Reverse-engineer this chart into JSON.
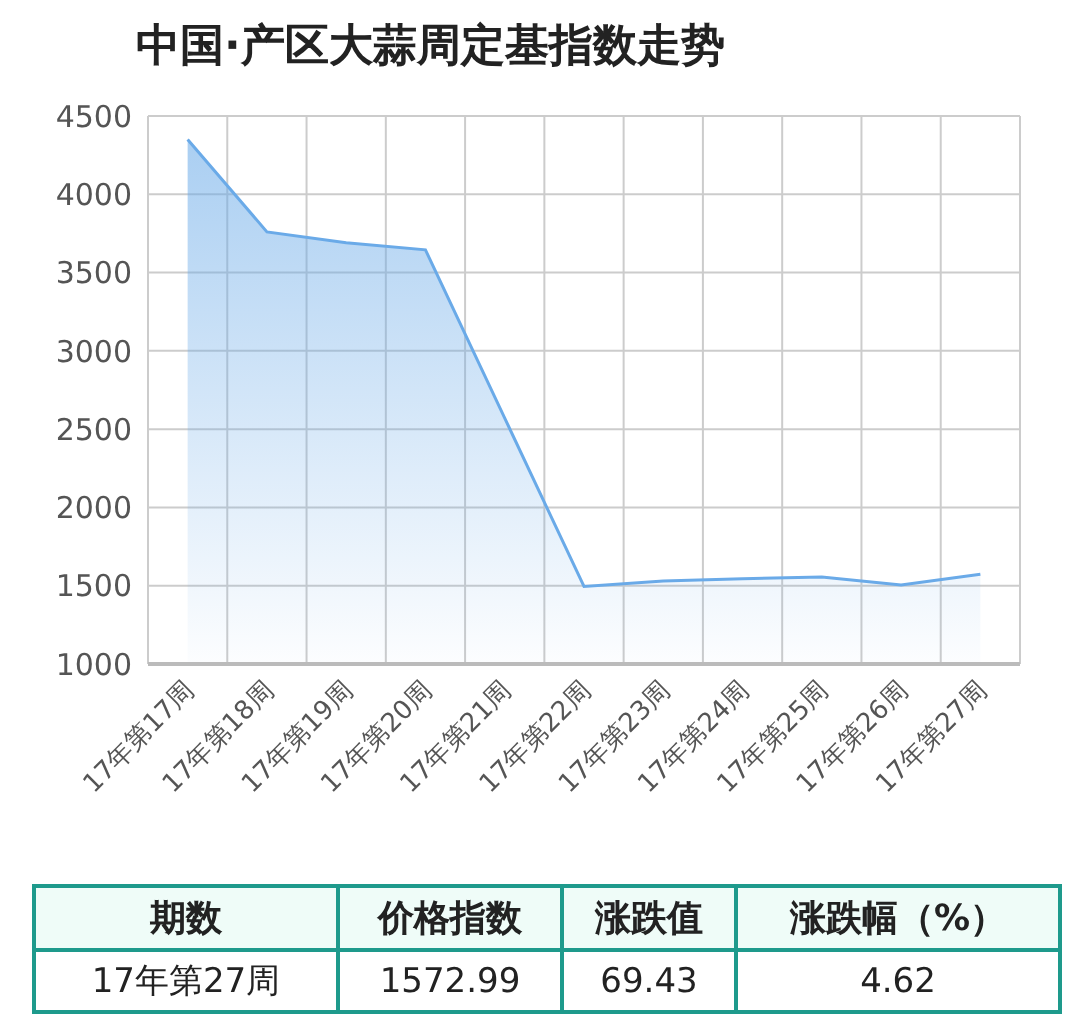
{
  "chart_data": {
    "type": "area",
    "title": "中国·产区大蒜周定基指数走势",
    "categories": [
      "17年第17周",
      "17年第18周",
      "17年第19周",
      "17年第20周",
      "17年第21周",
      "17年第22周",
      "17年第23周",
      "17年第24周",
      "17年第25周",
      "17年第26周",
      "17年第27周"
    ],
    "values": [
      4350,
      3760,
      3690,
      3645,
      2570,
      1495,
      1530,
      1545,
      1555,
      1504,
      1573
    ],
    "color": "#6aaae8",
    "ylim": [
      1000,
      4500
    ],
    "yticks": [
      1000,
      1500,
      2000,
      2500,
      3000,
      3500,
      4000,
      4500
    ],
    "grid": true,
    "annotations": [
      "期数",
      "价格指数",
      "涨跌值",
      "涨跌幅（%）",
      "17年第27周",
      "1572.99",
      "69.43",
      "4.62"
    ]
  }
}
